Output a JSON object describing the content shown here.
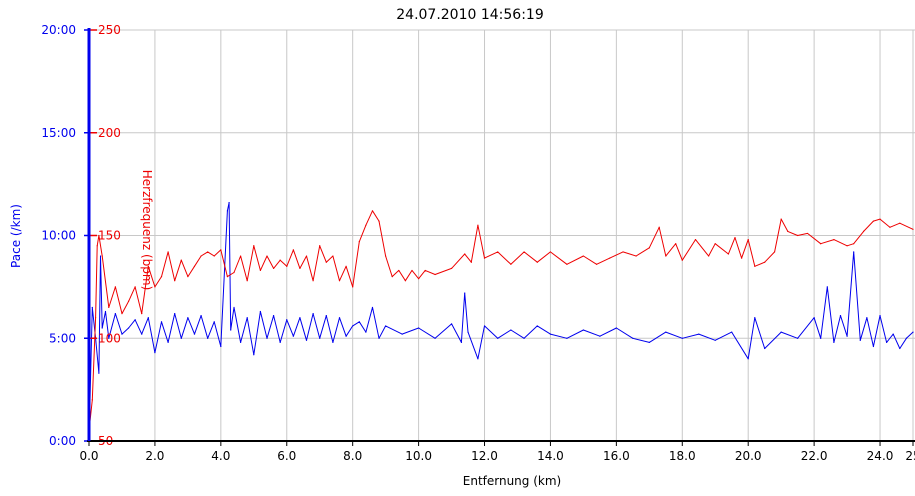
{
  "chart_data": {
    "type": "line",
    "title": "24.07.2010 14:56:19",
    "xlabel": "Entfernung (km)",
    "ylabel_left": "Pace (/km)",
    "ylabel_right": "Herzfrequenz (bpm)",
    "xlim": [
      0,
      25.0
    ],
    "x_ticks": [
      "0.0",
      "2.0",
      "4.0",
      "6.0",
      "8.0",
      "10.0",
      "12.0",
      "14.0",
      "16.0",
      "18.0",
      "20.0",
      "22.0",
      "24.0",
      "25"
    ],
    "x_tick_values": [
      0,
      2,
      4,
      6,
      8,
      10,
      12,
      14,
      16,
      18,
      20,
      22,
      24,
      25
    ],
    "pace_ylim_minutes": [
      0,
      20
    ],
    "pace_ticks": [
      "0:00",
      "5:00",
      "10:00",
      "15:00",
      "20:00"
    ],
    "pace_tick_values": [
      0,
      5,
      10,
      15,
      20
    ],
    "hr_ylim": [
      50,
      250
    ],
    "hr_ticks": [
      "50",
      "100",
      "150",
      "200",
      "250"
    ],
    "hr_tick_values": [
      50,
      100,
      150,
      200,
      250
    ],
    "grid": true,
    "colors": {
      "pace": "#0000ee",
      "hr": "#ee0000",
      "grid": "#c8c8c8",
      "axis": "#000000"
    },
    "series": [
      {
        "key": "pace",
        "axis": "left",
        "x": [
          0,
          0.1,
          0.2,
          0.3,
          0.35,
          0.4,
          0.5,
          0.6,
          0.8,
          1.0,
          1.2,
          1.4,
          1.6,
          1.8,
          2.0,
          2.2,
          2.4,
          2.6,
          2.8,
          3.0,
          3.2,
          3.4,
          3.6,
          3.8,
          4.0,
          4.2,
          4.25,
          4.3,
          4.4,
          4.6,
          4.8,
          5.0,
          5.2,
          5.4,
          5.6,
          5.8,
          6.0,
          6.2,
          6.4,
          6.6,
          6.8,
          7.0,
          7.2,
          7.4,
          7.6,
          7.8,
          8.0,
          8.2,
          8.4,
          8.6,
          8.8,
          9.0,
          9.5,
          10.0,
          10.5,
          11.0,
          11.3,
          11.4,
          11.5,
          11.8,
          12.0,
          12.4,
          12.8,
          13.2,
          13.6,
          14.0,
          14.5,
          15.0,
          15.5,
          16.0,
          16.5,
          17.0,
          17.5,
          18.0,
          18.5,
          19.0,
          19.5,
          20.0,
          20.2,
          20.5,
          21.0,
          21.5,
          22.0,
          22.2,
          22.4,
          22.6,
          22.8,
          23.0,
          23.2,
          23.4,
          23.6,
          23.8,
          24.0,
          24.2,
          24.4,
          24.6,
          24.8,
          25.0
        ],
        "values": [
          0,
          6.5,
          5.0,
          3.3,
          9.0,
          5.5,
          6.3,
          5.0,
          6.2,
          5.2,
          5.5,
          5.9,
          5.2,
          6.0,
          4.3,
          5.8,
          4.8,
          6.2,
          5.0,
          6.0,
          5.2,
          6.1,
          5.0,
          5.8,
          4.6,
          11.2,
          11.6,
          5.4,
          6.5,
          4.8,
          6.0,
          4.2,
          6.3,
          5.0,
          6.1,
          4.8,
          5.9,
          5.1,
          6.0,
          4.9,
          6.2,
          5.0,
          6.1,
          4.8,
          6.0,
          5.1,
          5.6,
          5.8,
          5.3,
          6.5,
          5.0,
          5.6,
          5.2,
          5.5,
          5.0,
          5.7,
          4.8,
          7.2,
          5.3,
          4.0,
          5.6,
          5.0,
          5.4,
          5.0,
          5.6,
          5.2,
          5.0,
          5.4,
          5.1,
          5.5,
          5.0,
          4.8,
          5.3,
          5.0,
          5.2,
          4.9,
          5.3,
          4.0,
          6.0,
          4.5,
          5.3,
          5.0,
          6.0,
          5.0,
          7.5,
          4.8,
          6.1,
          5.1,
          9.2,
          4.9,
          6.0,
          4.6,
          6.1,
          4.8,
          5.2,
          4.5,
          5.0,
          5.3
        ]
      },
      {
        "key": "hr",
        "axis": "right",
        "x": [
          0,
          0.1,
          0.2,
          0.25,
          0.3,
          0.4,
          0.6,
          0.8,
          1.0,
          1.2,
          1.4,
          1.6,
          1.8,
          2.0,
          2.2,
          2.4,
          2.6,
          2.8,
          3.0,
          3.2,
          3.4,
          3.6,
          3.8,
          4.0,
          4.2,
          4.4,
          4.6,
          4.8,
          5.0,
          5.2,
          5.4,
          5.6,
          5.8,
          6.0,
          6.2,
          6.4,
          6.6,
          6.8,
          7.0,
          7.2,
          7.4,
          7.6,
          7.8,
          8.0,
          8.2,
          8.4,
          8.6,
          8.8,
          9.0,
          9.2,
          9.4,
          9.6,
          9.8,
          10.0,
          10.2,
          10.5,
          11.0,
          11.4,
          11.6,
          11.8,
          12.0,
          12.4,
          12.8,
          13.2,
          13.6,
          14.0,
          14.5,
          15.0,
          15.4,
          15.8,
          16.2,
          16.6,
          17.0,
          17.3,
          17.5,
          17.8,
          18.0,
          18.4,
          18.8,
          19.0,
          19.4,
          19.6,
          19.8,
          20.0,
          20.2,
          20.5,
          20.8,
          21.0,
          21.2,
          21.5,
          21.8,
          22.2,
          22.6,
          23.0,
          23.2,
          23.5,
          23.8,
          24.0,
          24.3,
          24.6,
          25.0
        ],
        "values": [
          55,
          70,
          110,
          145,
          150,
          140,
          115,
          125,
          112,
          118,
          125,
          112,
          135,
          125,
          130,
          142,
          128,
          138,
          130,
          135,
          140,
          142,
          140,
          143,
          130,
          132,
          140,
          128,
          145,
          133,
          140,
          134,
          138,
          135,
          143,
          134,
          140,
          128,
          145,
          137,
          140,
          128,
          135,
          125,
          147,
          155,
          162,
          157,
          140,
          130,
          133,
          128,
          133,
          129,
          133,
          131,
          134,
          141,
          137,
          155,
          139,
          142,
          136,
          142,
          137,
          142,
          136,
          140,
          136,
          139,
          142,
          140,
          144,
          154,
          140,
          146,
          138,
          148,
          140,
          146,
          141,
          149,
          139,
          148,
          135,
          137,
          142,
          158,
          152,
          150,
          151,
          146,
          148,
          145,
          146,
          152,
          157,
          158,
          154,
          156,
          153
        ]
      }
    ]
  }
}
